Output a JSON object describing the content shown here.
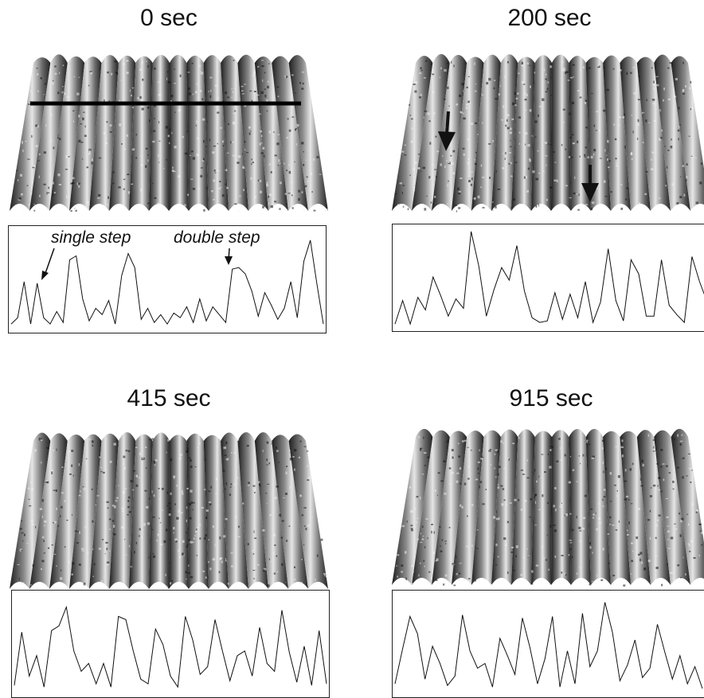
{
  "panels": [
    {
      "title": "0 sec",
      "profile": [
        8,
        16,
        62,
        8,
        60,
        16,
        8,
        24,
        10,
        90,
        95,
        40,
        12,
        28,
        20,
        38,
        8,
        70,
        98,
        80,
        14,
        28,
        10,
        20,
        8,
        22,
        16,
        30,
        10,
        40,
        12,
        30,
        20,
        10,
        78,
        80,
        72,
        50,
        18,
        48,
        32,
        14,
        28,
        62,
        16,
        88,
        115,
        60,
        8
      ]
    },
    {
      "title": "200 sec",
      "profile": [
        6,
        36,
        6,
        40,
        24,
        66,
        42,
        16,
        38,
        26,
        124,
        80,
        16,
        50,
        78,
        62,
        106,
        48,
        14,
        8,
        10,
        46,
        12,
        44,
        14,
        60,
        8,
        34,
        102,
        36,
        10,
        88,
        70,
        16,
        16,
        88,
        30,
        18,
        8,
        92,
        60,
        34
      ]
    },
    {
      "title": "415 sec",
      "profile": [
        12,
        80,
        24,
        50,
        10,
        82,
        88,
        112,
        56,
        30,
        40,
        14,
        40,
        10,
        100,
        96,
        56,
        20,
        14,
        84,
        64,
        24,
        10,
        100,
        70,
        26,
        36,
        96,
        56,
        18,
        50,
        56,
        24,
        86,
        40,
        30,
        108,
        54,
        16,
        62,
        12,
        82,
        14
      ]
    },
    {
      "title": "915 sec",
      "profile": [
        14,
        58,
        100,
        78,
        20,
        62,
        40,
        12,
        24,
        102,
        56,
        34,
        40,
        10,
        72,
        50,
        26,
        98,
        60,
        14,
        46,
        100,
        10,
        56,
        14,
        104,
        36,
        56,
        118,
        80,
        18,
        38,
        70,
        22,
        34,
        90,
        54,
        20,
        50,
        14,
        36,
        8
      ]
    }
  ],
  "annotations": {
    "single": "single step",
    "double": "double step"
  },
  "colors": {
    "trace": "#111111",
    "ink": "#111111",
    "ridge_light": "#d9d9d9",
    "ridge_dark": "#2a2a2a"
  }
}
